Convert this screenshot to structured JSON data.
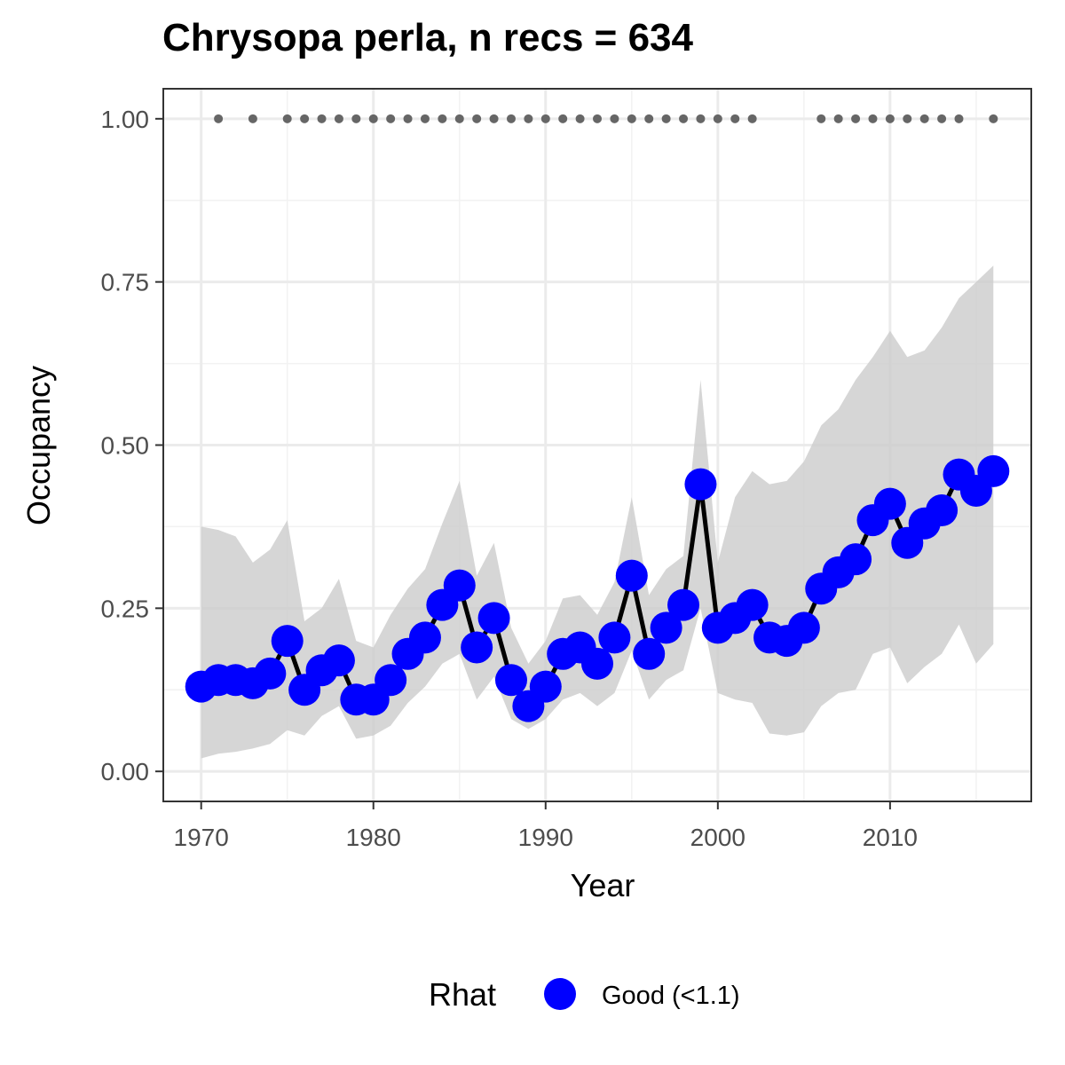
{
  "chart_data": {
    "type": "line",
    "title": "Chrysopa perla, n recs = 634",
    "xlabel": "Year",
    "ylabel": "Occupancy",
    "xlim": [
      1967.8,
      2018.2
    ],
    "ylim": [
      -0.046,
      1.046
    ],
    "x_ticks": [
      1970,
      1980,
      1990,
      2000,
      2010
    ],
    "x_tick_labels": [
      "1970",
      "1980",
      "1990",
      "2000",
      "2010"
    ],
    "y_ticks": [
      0,
      0.25,
      0.5,
      0.75,
      1.0
    ],
    "y_tick_labels": [
      "0.00",
      "0.25",
      "0.50",
      "0.75",
      "1.00"
    ],
    "grid": true,
    "legend_position": "bottom",
    "series": [
      {
        "name": "Good (<1.1)",
        "color": "#0000ff",
        "line_color": "#000000",
        "x": [
          1970,
          1971,
          1972,
          1973,
          1974,
          1975,
          1976,
          1977,
          1978,
          1979,
          1980,
          1981,
          1982,
          1983,
          1984,
          1985,
          1986,
          1987,
          1988,
          1989,
          1990,
          1991,
          1992,
          1993,
          1994,
          1995,
          1996,
          1997,
          1998,
          1999,
          2000,
          2001,
          2002,
          2003,
          2004,
          2005,
          2006,
          2007,
          2008,
          2009,
          2010,
          2011,
          2012,
          2013,
          2014,
          2015,
          2016
        ],
        "values": [
          0.13,
          0.14,
          0.14,
          0.135,
          0.15,
          0.2,
          0.125,
          0.155,
          0.17,
          0.11,
          0.11,
          0.14,
          0.18,
          0.205,
          0.255,
          0.285,
          0.19,
          0.235,
          0.14,
          0.1,
          0.13,
          0.18,
          0.19,
          0.165,
          0.205,
          0.3,
          0.18,
          0.22,
          0.255,
          0.44,
          0.22,
          0.235,
          0.255,
          0.205,
          0.2,
          0.22,
          0.28,
          0.305,
          0.325,
          0.385,
          0.41,
          0.35,
          0.38,
          0.4,
          0.455,
          0.43,
          0.46
        ],
        "ci_lower": [
          0.02,
          0.027,
          0.03,
          0.035,
          0.042,
          0.063,
          0.055,
          0.085,
          0.1,
          0.05,
          0.055,
          0.07,
          0.105,
          0.13,
          0.165,
          0.18,
          0.11,
          0.145,
          0.08,
          0.065,
          0.08,
          0.11,
          0.12,
          0.1,
          0.12,
          0.185,
          0.11,
          0.14,
          0.155,
          0.25,
          0.12,
          0.11,
          0.105,
          0.058,
          0.055,
          0.06,
          0.1,
          0.12,
          0.125,
          0.18,
          0.19,
          0.135,
          0.16,
          0.18,
          0.225,
          0.165,
          0.195
        ],
        "ci_upper": [
          0.375,
          0.37,
          0.36,
          0.32,
          0.34,
          0.385,
          0.23,
          0.25,
          0.295,
          0.2,
          0.19,
          0.24,
          0.28,
          0.31,
          0.38,
          0.445,
          0.3,
          0.35,
          0.22,
          0.165,
          0.2,
          0.265,
          0.27,
          0.24,
          0.29,
          0.42,
          0.27,
          0.31,
          0.33,
          0.6,
          0.32,
          0.42,
          0.46,
          0.44,
          0.445,
          0.475,
          0.53,
          0.555,
          0.6,
          0.635,
          0.675,
          0.635,
          0.645,
          0.68,
          0.725,
          0.75,
          0.775
        ]
      }
    ],
    "record_years": [
      1971,
      1973,
      1975,
      1976,
      1977,
      1978,
      1979,
      1980,
      1981,
      1982,
      1983,
      1984,
      1985,
      1986,
      1987,
      1988,
      1989,
      1990,
      1991,
      1992,
      1993,
      1994,
      1995,
      1996,
      1997,
      1998,
      1999,
      2000,
      2001,
      2002,
      2006,
      2007,
      2008,
      2009,
      2010,
      2011,
      2012,
      2013,
      2014,
      2016
    ],
    "record_y": 1.0,
    "ribbon_color": "#cccccc",
    "record_color": "#666666"
  },
  "legend": {
    "title": "Rhat",
    "label": "Good (<1.1)"
  }
}
